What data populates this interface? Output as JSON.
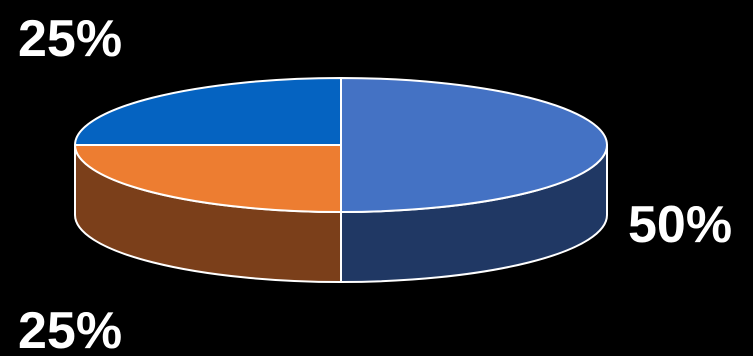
{
  "chart_data": {
    "type": "pie",
    "variant": "3d",
    "categories": [
      "",
      "",
      ""
    ],
    "values": [
      50,
      25,
      25
    ],
    "data_labels": [
      "50%",
      "25%",
      "25%"
    ],
    "colors": {
      "top": [
        "#4472c4",
        "#ed7d31",
        "#0563c1"
      ],
      "side": [
        "#203864",
        "#7b3f1a",
        "#03396e"
      ]
    },
    "legend": "none",
    "grid": false
  }
}
